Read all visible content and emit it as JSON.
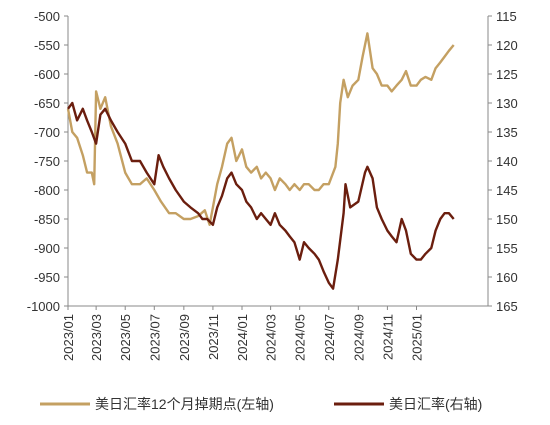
{
  "chart_data": {
    "type": "line",
    "title": "",
    "legend_position": "bottom",
    "grid": false,
    "x_range": [
      "2023-01-01",
      "2025-05-31"
    ],
    "x_ticks": [
      "2023/01",
      "2023/03",
      "2023/05",
      "2023/07",
      "2023/09",
      "2023/11",
      "2024/01",
      "2024/03",
      "2024/05",
      "2024/07",
      "2024/09",
      "2024/11",
      "2025/01"
    ],
    "y_left": {
      "range": [
        -1000,
        -500
      ],
      "ticks": [
        "-500",
        "-550",
        "-600",
        "-650",
        "-700",
        "-750",
        "-800",
        "-850",
        "-900",
        "-950",
        "-1000"
      ]
    },
    "y_right": {
      "range": [
        115,
        165
      ],
      "inverted": true,
      "ticks": [
        "115",
        "120",
        "125",
        "130",
        "135",
        "140",
        "145",
        "150",
        "155",
        "160",
        "165"
      ]
    },
    "series": [
      {
        "name": "美日汇率12个月掉期点(左轴)",
        "axis": "left",
        "color": "#C4A062",
        "points": [
          [
            "2023-01-01",
            -660
          ],
          [
            "2023-01-10",
            -700
          ],
          [
            "2023-01-20",
            -710
          ],
          [
            "2023-02-01",
            -740
          ],
          [
            "2023-02-10",
            -770
          ],
          [
            "2023-02-20",
            -770
          ],
          [
            "2023-02-25",
            -790
          ],
          [
            "2023-03-01",
            -630
          ],
          [
            "2023-03-10",
            -660
          ],
          [
            "2023-03-20",
            -640
          ],
          [
            "2023-04-01",
            -690
          ],
          [
            "2023-04-15",
            -720
          ],
          [
            "2023-05-01",
            -770
          ],
          [
            "2023-05-15",
            -790
          ],
          [
            "2023-06-01",
            -790
          ],
          [
            "2023-06-15",
            -780
          ],
          [
            "2023-07-01",
            -800
          ],
          [
            "2023-07-15",
            -820
          ],
          [
            "2023-08-01",
            -840
          ],
          [
            "2023-08-15",
            -840
          ],
          [
            "2023-09-01",
            -850
          ],
          [
            "2023-09-15",
            -850
          ],
          [
            "2023-10-01",
            -845
          ],
          [
            "2023-10-15",
            -835
          ],
          [
            "2023-10-25",
            -860
          ],
          [
            "2023-11-01",
            -830
          ],
          [
            "2023-11-10",
            -790
          ],
          [
            "2023-11-20",
            -760
          ],
          [
            "2023-12-01",
            -720
          ],
          [
            "2023-12-10",
            -710
          ],
          [
            "2023-12-20",
            -750
          ],
          [
            "2024-01-01",
            -730
          ],
          [
            "2024-01-10",
            -760
          ],
          [
            "2024-01-20",
            -770
          ],
          [
            "2024-02-01",
            -760
          ],
          [
            "2024-02-10",
            -780
          ],
          [
            "2024-02-20",
            -770
          ],
          [
            "2024-03-01",
            -780
          ],
          [
            "2024-03-10",
            -800
          ],
          [
            "2024-03-20",
            -780
          ],
          [
            "2024-04-01",
            -790
          ],
          [
            "2024-04-10",
            -800
          ],
          [
            "2024-04-20",
            -790
          ],
          [
            "2024-05-01",
            -800
          ],
          [
            "2024-05-10",
            -790
          ],
          [
            "2024-05-20",
            -790
          ],
          [
            "2024-06-01",
            -800
          ],
          [
            "2024-06-10",
            -800
          ],
          [
            "2024-06-20",
            -790
          ],
          [
            "2024-07-01",
            -790
          ],
          [
            "2024-07-15",
            -760
          ],
          [
            "2024-07-20",
            -720
          ],
          [
            "2024-07-25",
            -650
          ],
          [
            "2024-08-01",
            -610
          ],
          [
            "2024-08-10",
            -640
          ],
          [
            "2024-08-20",
            -620
          ],
          [
            "2024-09-01",
            -610
          ],
          [
            "2024-09-10",
            -570
          ],
          [
            "2024-09-20",
            -530
          ],
          [
            "2024-10-01",
            -590
          ],
          [
            "2024-10-10",
            -600
          ],
          [
            "2024-10-20",
            -620
          ],
          [
            "2024-11-01",
            -620
          ],
          [
            "2024-11-10",
            -630
          ],
          [
            "2024-11-20",
            -620
          ],
          [
            "2024-12-01",
            -610
          ],
          [
            "2024-12-10",
            -595
          ],
          [
            "2024-12-20",
            -620
          ],
          [
            "2025-01-01",
            -620
          ],
          [
            "2025-01-10",
            -610
          ],
          [
            "2025-01-20",
            -605
          ],
          [
            "2025-02-01",
            -610
          ],
          [
            "2025-02-10",
            -590
          ],
          [
            "2025-02-20",
            -580
          ],
          [
            "2025-03-01",
            -570
          ],
          [
            "2025-03-10",
            -560
          ],
          [
            "2025-03-20",
            -550
          ]
        ]
      },
      {
        "name": "美日汇率(右轴)",
        "axis": "right",
        "color": "#6B1E0E",
        "points": [
          [
            "2023-01-01",
            131
          ],
          [
            "2023-01-10",
            130
          ],
          [
            "2023-01-20",
            133
          ],
          [
            "2023-02-01",
            131
          ],
          [
            "2023-02-10",
            133
          ],
          [
            "2023-02-20",
            135
          ],
          [
            "2023-03-01",
            137
          ],
          [
            "2023-03-10",
            132
          ],
          [
            "2023-03-20",
            131
          ],
          [
            "2023-04-01",
            133
          ],
          [
            "2023-04-15",
            135
          ],
          [
            "2023-05-01",
            137
          ],
          [
            "2023-05-15",
            140
          ],
          [
            "2023-06-01",
            140
          ],
          [
            "2023-06-15",
            142
          ],
          [
            "2023-07-01",
            144
          ],
          [
            "2023-07-10",
            139
          ],
          [
            "2023-07-20",
            141
          ],
          [
            "2023-08-01",
            143
          ],
          [
            "2023-08-15",
            145
          ],
          [
            "2023-09-01",
            147
          ],
          [
            "2023-09-15",
            148
          ],
          [
            "2023-10-01",
            149
          ],
          [
            "2023-10-10",
            150
          ],
          [
            "2023-10-20",
            150
          ],
          [
            "2023-11-01",
            151
          ],
          [
            "2023-11-10",
            148
          ],
          [
            "2023-11-20",
            146
          ],
          [
            "2023-12-01",
            143
          ],
          [
            "2023-12-10",
            142
          ],
          [
            "2023-12-20",
            144
          ],
          [
            "2024-01-01",
            145
          ],
          [
            "2024-01-10",
            147
          ],
          [
            "2024-01-20",
            148
          ],
          [
            "2024-02-01",
            150
          ],
          [
            "2024-02-10",
            149
          ],
          [
            "2024-02-20",
            150
          ],
          [
            "2024-03-01",
            151
          ],
          [
            "2024-03-10",
            149
          ],
          [
            "2024-03-20",
            151
          ],
          [
            "2024-04-01",
            152
          ],
          [
            "2024-04-10",
            153
          ],
          [
            "2024-04-20",
            154
          ],
          [
            "2024-05-01",
            157
          ],
          [
            "2024-05-10",
            154
          ],
          [
            "2024-05-20",
            155
          ],
          [
            "2024-06-01",
            156
          ],
          [
            "2024-06-10",
            157
          ],
          [
            "2024-06-20",
            159
          ],
          [
            "2024-07-01",
            161
          ],
          [
            "2024-07-10",
            162
          ],
          [
            "2024-07-20",
            157
          ],
          [
            "2024-08-01",
            149
          ],
          [
            "2024-08-05",
            144
          ],
          [
            "2024-08-15",
            148
          ],
          [
            "2024-09-01",
            147
          ],
          [
            "2024-09-15",
            142
          ],
          [
            "2024-09-20",
            141
          ],
          [
            "2024-10-01",
            143
          ],
          [
            "2024-10-10",
            148
          ],
          [
            "2024-10-20",
            150
          ],
          [
            "2024-11-01",
            152
          ],
          [
            "2024-11-10",
            153
          ],
          [
            "2024-11-20",
            154
          ],
          [
            "2024-12-01",
            150
          ],
          [
            "2024-12-10",
            152
          ],
          [
            "2024-12-20",
            156
          ],
          [
            "2025-01-01",
            157
          ],
          [
            "2025-01-10",
            157
          ],
          [
            "2025-01-20",
            156
          ],
          [
            "2025-02-01",
            155
          ],
          [
            "2025-02-10",
            152
          ],
          [
            "2025-02-20",
            150
          ],
          [
            "2025-03-01",
            149
          ],
          [
            "2025-03-10",
            149
          ],
          [
            "2025-03-20",
            150
          ]
        ]
      }
    ]
  }
}
